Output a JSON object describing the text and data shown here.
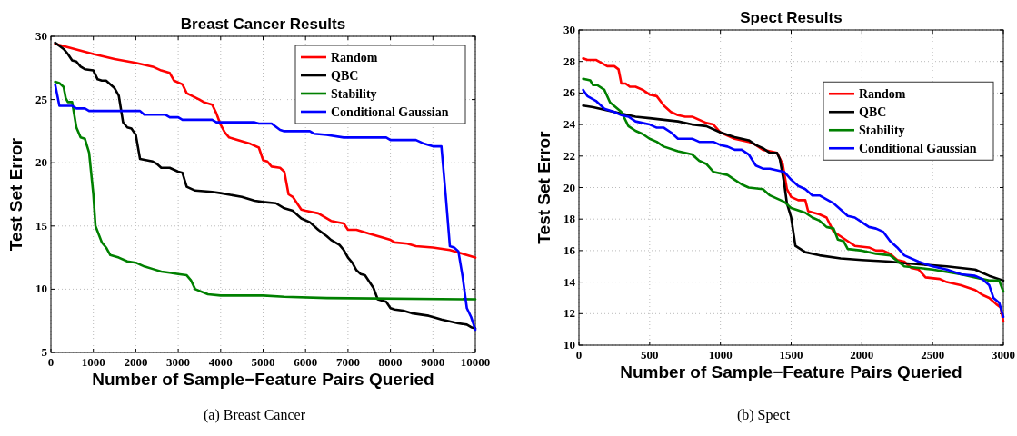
{
  "chart_data": [
    {
      "type": "line",
      "title": "Breast Cancer Results",
      "xlabel": "Number of Sample−Feature Pairs Queried",
      "ylabel": "Test Set Error",
      "annotations": [
        "(a)  Breast Cancer"
      ],
      "xlim": [
        0,
        10000
      ],
      "xticks": [
        0,
        1000,
        2000,
        3000,
        4000,
        5000,
        6000,
        7000,
        8000,
        9000,
        10000
      ],
      "ylim": [
        5,
        30
      ],
      "yticks": [
        5,
        10,
        15,
        20,
        25,
        30
      ],
      "grid": true,
      "legend": "top right",
      "series": [
        {
          "name": "Random",
          "color": "#ff0000",
          "x": [
            100,
            1000,
            1500,
            2000,
            2400,
            2600,
            2800,
            2900,
            3100,
            3200,
            3500,
            3600,
            3800,
            3900,
            4000,
            4100,
            4200,
            4500,
            4700,
            4900,
            5000,
            5100,
            5200,
            5400,
            5500,
            5600,
            5700,
            5900,
            6000,
            6300,
            6500,
            6600,
            6900,
            7000,
            7200,
            7500,
            7800,
            8000,
            8100,
            8400,
            8600,
            9000,
            9400,
            9600,
            10000
          ],
          "values": [
            29.4,
            28.6,
            28.2,
            27.9,
            27.6,
            27.3,
            27.1,
            26.5,
            26.2,
            25.5,
            25.0,
            24.8,
            24.6,
            23.9,
            23.0,
            22.4,
            22.0,
            21.7,
            21.5,
            21.2,
            20.2,
            20.1,
            19.7,
            19.6,
            19.3,
            17.5,
            17.3,
            16.3,
            16.2,
            16.0,
            15.6,
            15.4,
            15.2,
            14.7,
            14.7,
            14.4,
            14.1,
            13.9,
            13.7,
            13.6,
            13.4,
            13.3,
            13.1,
            12.9,
            12.5
          ]
        },
        {
          "name": "QBC",
          "color": "#000000",
          "x": [
            100,
            300,
            400,
            500,
            600,
            700,
            800,
            1000,
            1100,
            1200,
            1300,
            1500,
            1600,
            1700,
            1800,
            1900,
            2000,
            2100,
            2400,
            2500,
            2600,
            2800,
            3000,
            3100,
            3200,
            3400,
            3800,
            4000,
            4500,
            4800,
            5000,
            5300,
            5500,
            5700,
            5900,
            6100,
            6300,
            6500,
            6600,
            6800,
            6900,
            7000,
            7100,
            7200,
            7300,
            7400,
            7500,
            7600,
            7700,
            7900,
            8000,
            8100,
            8300,
            8500,
            8900,
            9000,
            9200,
            9600,
            9800,
            9900,
            10000
          ],
          "values": [
            29.5,
            29.0,
            28.6,
            28.1,
            28.0,
            27.6,
            27.4,
            27.3,
            26.6,
            26.5,
            26.5,
            25.9,
            25.3,
            23.2,
            22.8,
            22.7,
            22.2,
            20.3,
            20.1,
            19.9,
            19.6,
            19.6,
            19.3,
            19.2,
            18.1,
            17.8,
            17.7,
            17.6,
            17.3,
            17.0,
            16.9,
            16.8,
            16.4,
            16.2,
            15.6,
            15.3,
            14.7,
            14.2,
            13.9,
            13.5,
            13.1,
            12.5,
            12.1,
            11.5,
            11.2,
            11.1,
            10.6,
            10.1,
            9.2,
            9.0,
            8.5,
            8.4,
            8.3,
            8.1,
            7.9,
            7.8,
            7.6,
            7.3,
            7.2,
            7.0,
            6.9
          ]
        },
        {
          "name": "Stability",
          "color": "#008000",
          "x": [
            100,
            200,
            300,
            350,
            400,
            500,
            600,
            700,
            800,
            900,
            1000,
            1050,
            1200,
            1300,
            1400,
            1600,
            1800,
            2000,
            2200,
            2400,
            2600,
            2800,
            3000,
            3200,
            3300,
            3400,
            3700,
            4000,
            5000,
            5500,
            6500,
            10000
          ],
          "values": [
            26.4,
            26.3,
            26.0,
            25.1,
            24.8,
            24.8,
            22.8,
            22.0,
            21.9,
            20.8,
            17.5,
            15.0,
            13.7,
            13.3,
            12.7,
            12.5,
            12.2,
            12.1,
            11.8,
            11.6,
            11.4,
            11.3,
            11.2,
            11.1,
            10.7,
            10.0,
            9.6,
            9.5,
            9.5,
            9.4,
            9.3,
            9.2
          ]
        },
        {
          "name": "Conditional Gaussian",
          "color": "#0000ff",
          "x": [
            100,
            200,
            500,
            600,
            800,
            900,
            2100,
            2200,
            2700,
            2800,
            3000,
            3100,
            3800,
            3900,
            4800,
            4900,
            5200,
            5400,
            5500,
            6100,
            6200,
            6500,
            6900,
            7900,
            8000,
            8600,
            8800,
            9000,
            9200,
            9300,
            9400,
            9500,
            9600,
            9700,
            9800,
            9900,
            10000
          ],
          "values": [
            26.2,
            24.5,
            24.5,
            24.3,
            24.3,
            24.1,
            24.1,
            23.8,
            23.8,
            23.6,
            23.6,
            23.4,
            23.4,
            23.2,
            23.2,
            23.1,
            23.1,
            22.6,
            22.5,
            22.5,
            22.3,
            22.2,
            22.0,
            22.0,
            21.8,
            21.8,
            21.5,
            21.3,
            21.3,
            17.5,
            13.4,
            13.3,
            13.0,
            11.0,
            8.5,
            7.8,
            6.8
          ]
        }
      ]
    },
    {
      "type": "line",
      "title": "Spect Results",
      "xlabel": "Number of Sample−Feature Pairs Queried",
      "ylabel": "Test Set Error",
      "annotations": [
        "(b)  Spect"
      ],
      "xlim": [
        0,
        3000
      ],
      "xticks": [
        0,
        500,
        1000,
        1500,
        2000,
        2500,
        3000
      ],
      "ylim": [
        10,
        30
      ],
      "yticks": [
        10,
        12,
        14,
        16,
        18,
        20,
        22,
        24,
        26,
        28,
        30
      ],
      "grid": true,
      "legend": "right",
      "series": [
        {
          "name": "Random",
          "color": "#ff0000",
          "x": [
            30,
            60,
            120,
            200,
            250,
            280,
            300,
            330,
            360,
            400,
            450,
            500,
            550,
            600,
            650,
            700,
            750,
            800,
            900,
            950,
            1000,
            1100,
            1200,
            1250,
            1300,
            1350,
            1400,
            1440,
            1470,
            1500,
            1550,
            1600,
            1620,
            1700,
            1750,
            1800,
            1850,
            1900,
            1950,
            2050,
            2100,
            2150,
            2200,
            2250,
            2300,
            2350,
            2400,
            2450,
            2550,
            2600,
            2700,
            2800,
            2850,
            2900,
            2950,
            2980,
            3000
          ],
          "values": [
            28.2,
            28.1,
            28.1,
            27.7,
            27.7,
            27.5,
            26.6,
            26.6,
            26.4,
            26.4,
            26.2,
            25.9,
            25.8,
            25.2,
            24.8,
            24.6,
            24.5,
            24.5,
            24.1,
            24.0,
            23.5,
            23.1,
            22.9,
            22.7,
            22.4,
            22.3,
            22.2,
            21.5,
            19.9,
            19.4,
            19.2,
            19.2,
            18.5,
            18.3,
            18.1,
            17.2,
            16.9,
            16.6,
            16.3,
            16.2,
            16.0,
            16.0,
            15.8,
            15.4,
            15.3,
            14.9,
            14.8,
            14.3,
            14.2,
            14.0,
            13.8,
            13.5,
            13.2,
            13.0,
            12.6,
            12.4,
            11.5
          ]
        },
        {
          "name": "QBC",
          "color": "#000000",
          "x": [
            30,
            100,
            200,
            300,
            400,
            500,
            600,
            700,
            800,
            900,
            1000,
            1100,
            1200,
            1250,
            1300,
            1350,
            1400,
            1420,
            1450,
            1470,
            1500,
            1530,
            1600,
            1700,
            1850,
            2000,
            2200,
            2300,
            2600,
            2800,
            2850,
            2900,
            3000
          ],
          "values": [
            25.2,
            25.1,
            24.9,
            24.7,
            24.5,
            24.4,
            24.3,
            24.2,
            24.0,
            23.9,
            23.5,
            23.2,
            23.0,
            22.7,
            22.5,
            22.2,
            22.2,
            21.8,
            20.3,
            19.0,
            18.1,
            16.3,
            15.9,
            15.7,
            15.5,
            15.4,
            15.3,
            15.2,
            15.0,
            14.8,
            14.6,
            14.4,
            14.1
          ]
        },
        {
          "name": "Stability",
          "color": "#008000",
          "x": [
            30,
            80,
            100,
            130,
            180,
            220,
            300,
            350,
            400,
            450,
            500,
            550,
            600,
            700,
            800,
            850,
            900,
            950,
            1050,
            1100,
            1150,
            1200,
            1300,
            1350,
            1400,
            1450,
            1500,
            1600,
            1650,
            1700,
            1750,
            1800,
            1830,
            1870,
            1900,
            2000,
            2100,
            2200,
            2300,
            2500,
            2700,
            2900,
            2970,
            3000
          ],
          "values": [
            26.9,
            26.8,
            26.5,
            26.5,
            26.2,
            25.4,
            24.8,
            23.9,
            23.6,
            23.4,
            23.1,
            22.9,
            22.6,
            22.3,
            22.1,
            21.7,
            21.5,
            21.0,
            20.8,
            20.5,
            20.2,
            20.0,
            19.9,
            19.5,
            19.3,
            19.1,
            18.7,
            18.4,
            18.1,
            17.9,
            17.5,
            17.4,
            16.7,
            16.6,
            16.1,
            16.0,
            15.8,
            15.7,
            15.0,
            14.8,
            14.5,
            14.1,
            14.1,
            13.4
          ]
        },
        {
          "name": "Conditional Gaussian",
          "color": "#0000ff",
          "x": [
            30,
            60,
            120,
            180,
            250,
            300,
            350,
            400,
            450,
            500,
            550,
            600,
            650,
            700,
            800,
            850,
            950,
            1000,
            1050,
            1100,
            1150,
            1200,
            1250,
            1300,
            1350,
            1400,
            1450,
            1500,
            1550,
            1600,
            1650,
            1700,
            1800,
            1850,
            1900,
            1950,
            2000,
            2050,
            2100,
            2150,
            2200,
            2250,
            2300,
            2400,
            2500,
            2600,
            2700,
            2800,
            2850,
            2900,
            2930,
            2970,
            3000
          ],
          "values": [
            26.2,
            25.8,
            25.5,
            25.0,
            24.8,
            24.6,
            24.5,
            24.2,
            24.1,
            24.0,
            23.8,
            23.8,
            23.5,
            23.1,
            23.1,
            22.9,
            22.9,
            22.7,
            22.6,
            22.4,
            22.4,
            22.1,
            21.4,
            21.2,
            21.2,
            21.1,
            21.0,
            20.5,
            20.1,
            19.9,
            19.5,
            19.5,
            19.0,
            18.6,
            18.2,
            18.1,
            17.8,
            17.5,
            17.4,
            17.2,
            16.6,
            16.2,
            15.7,
            15.3,
            15.0,
            14.8,
            14.5,
            14.4,
            14.2,
            13.8,
            13.0,
            12.7,
            11.8
          ]
        }
      ]
    }
  ]
}
